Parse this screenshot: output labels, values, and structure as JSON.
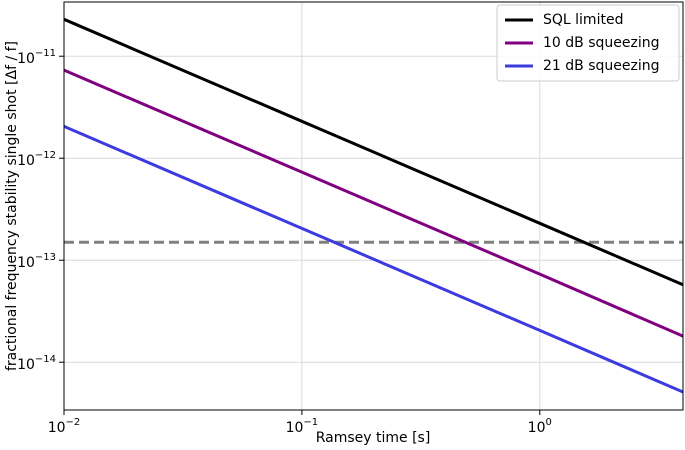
{
  "chart_data": {
    "type": "line",
    "xlabel": "Ramsey time [s]",
    "ylabel": "fractional frequency stability single shot [Δf / f]",
    "x": [
      0.01,
      0.1,
      1,
      4
    ],
    "series": [
      {
        "name": "SQL limited",
        "color": "#000000",
        "values": [
          2.3e-11,
          2.3e-12,
          2.3e-13,
          5.75e-14
        ]
      },
      {
        "name": "10 dB squeezing",
        "color": "#800080",
        "values": [
          7.3e-12,
          7.3e-13,
          7.3e-14,
          1.8e-14
        ]
      },
      {
        "name": "21 dB squeezing",
        "color": "#3b3be0",
        "values": [
          2.05e-12,
          2.05e-13,
          2.05e-14,
          5.1e-15
        ]
      }
    ],
    "reference_line": {
      "y": 1.5e-13,
      "color": "#808080",
      "style": "dashed"
    },
    "xscale": "log",
    "yscale": "log",
    "xlim": [
      0.01,
      4
    ],
    "ylim": [
      3.4e-15,
      3.4e-11
    ],
    "xticks": [
      {
        "value": 0.01,
        "label": "10",
        "exponent": "−2"
      },
      {
        "value": 0.1,
        "label": "10",
        "exponent": "−1"
      },
      {
        "value": 1,
        "label": "10",
        "exponent": "0"
      }
    ],
    "yticks": [
      {
        "value": 1e-14,
        "label": "10",
        "exponent": "−14"
      },
      {
        "value": 1e-13,
        "label": "10",
        "exponent": "−13"
      },
      {
        "value": 1e-12,
        "label": "10",
        "exponent": "−12"
      },
      {
        "value": 1e-11,
        "label": "10",
        "exponent": "−11"
      }
    ],
    "grid": true,
    "legend": "upper right"
  }
}
